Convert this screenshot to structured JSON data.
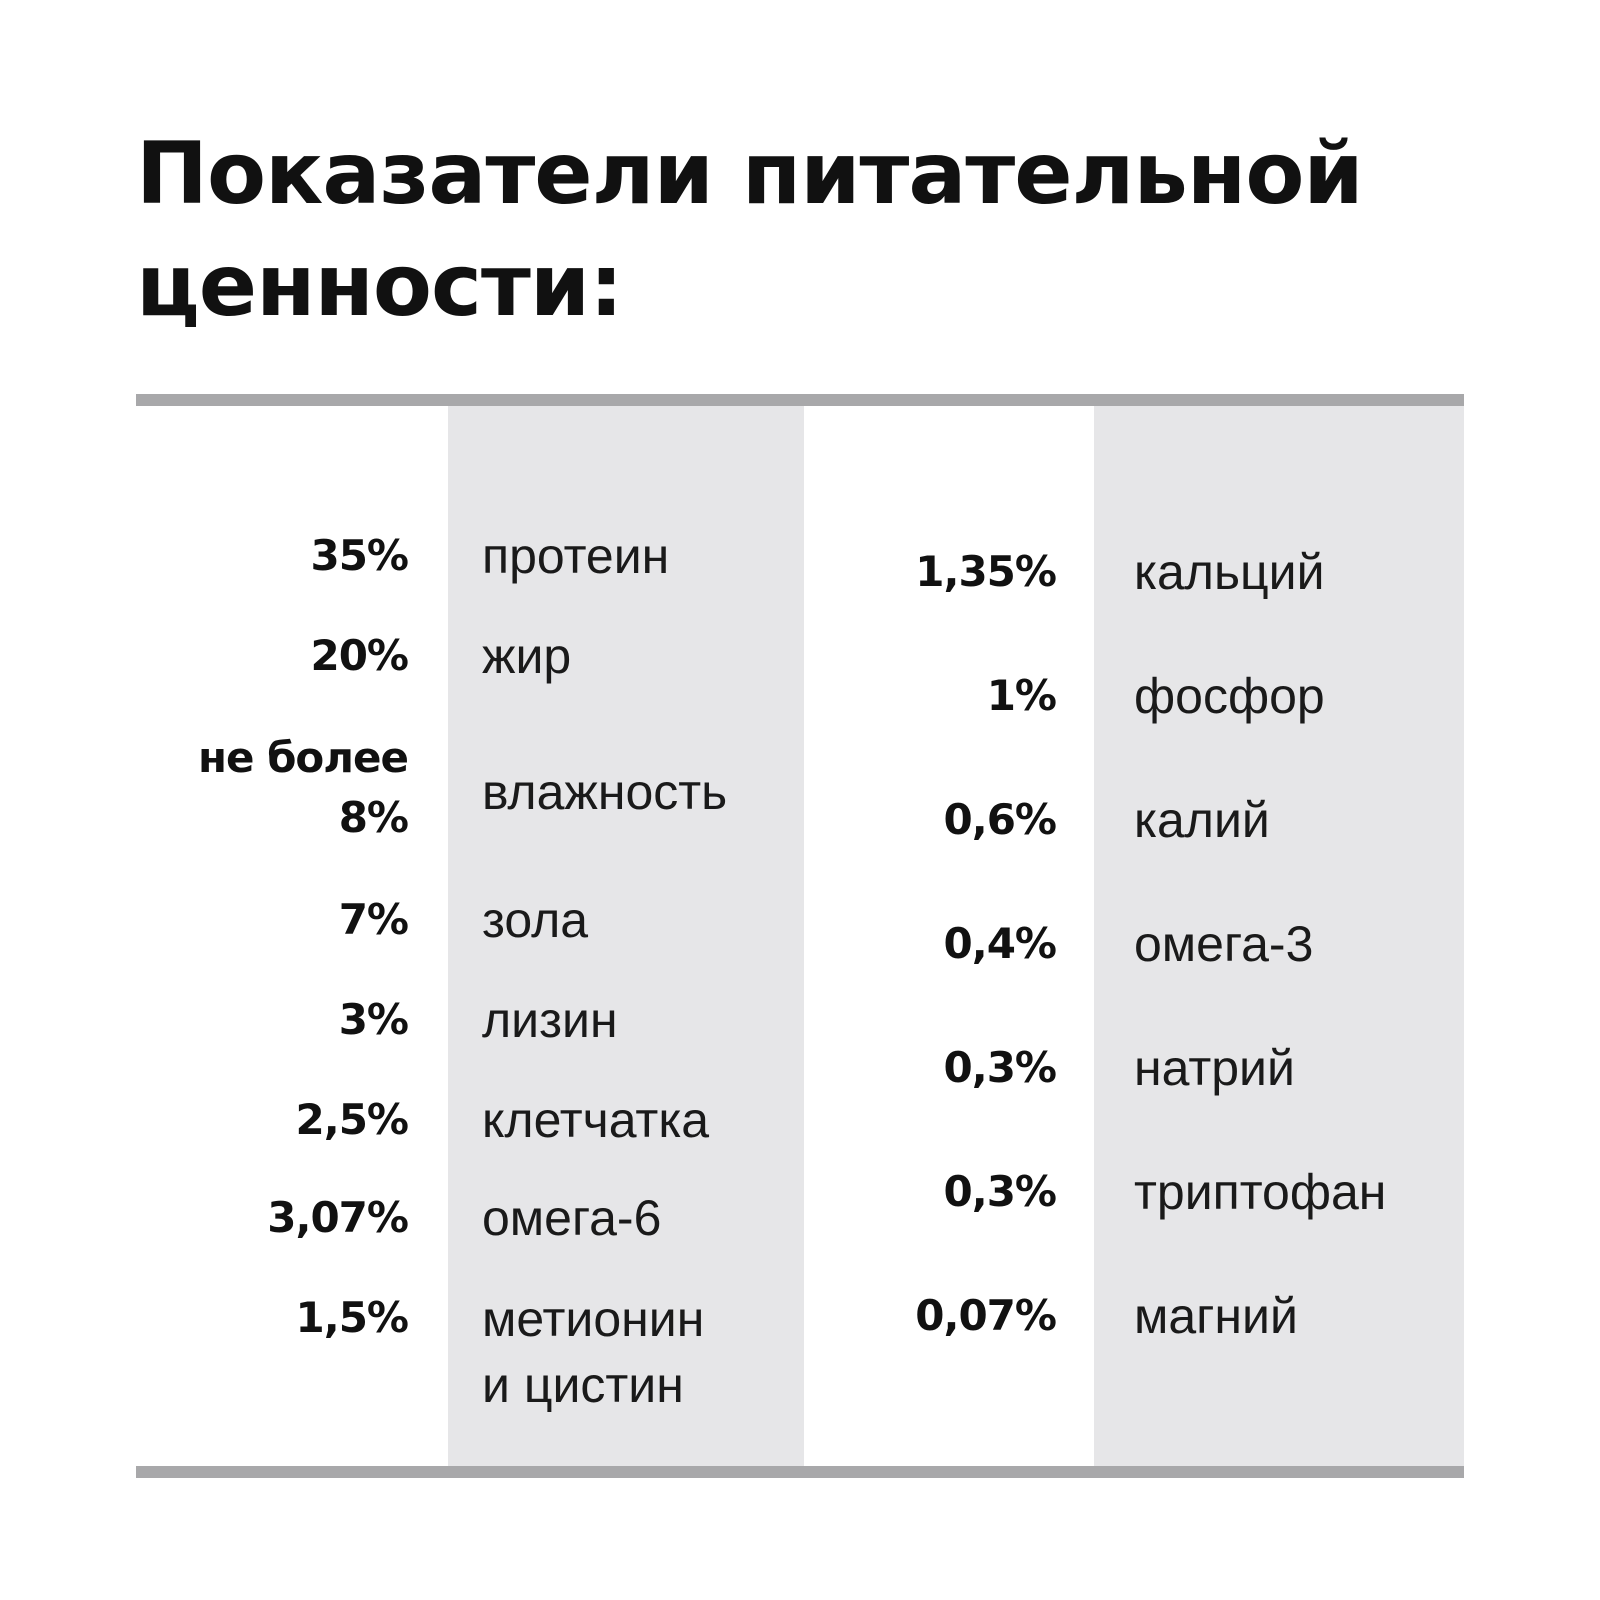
{
  "title": {
    "line1": "Показатели питательной",
    "line2": "ценности:"
  },
  "left_items": [
    {
      "value": "35%",
      "name": "протеин"
    },
    {
      "value": "20%",
      "name": "жир"
    },
    {
      "value_line1": "не более",
      "value_line2": "8%",
      "name": "влажность"
    },
    {
      "value": "7%",
      "name": "зола"
    },
    {
      "value": "3%",
      "name": "лизин"
    },
    {
      "value": "2,5%",
      "name": "клетчатка"
    },
    {
      "value": "3,07%",
      "name": "омега-6"
    },
    {
      "value": "1,5%",
      "name_line1": "метионин",
      "name_line2": "и цистин"
    }
  ],
  "right_items": [
    {
      "value": "1,35%",
      "name": "кальций"
    },
    {
      "value": "1%",
      "name": "фосфор"
    },
    {
      "value": "0,6%",
      "name": "калий"
    },
    {
      "value": "0,4%",
      "name": "омега-3"
    },
    {
      "value": "0,3%",
      "name": "натрий"
    },
    {
      "value": "0,3%",
      "name": "триптофан"
    },
    {
      "value": "0,07%",
      "name": "магний"
    }
  ]
}
